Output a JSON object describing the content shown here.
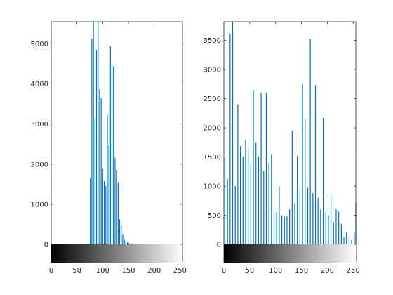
{
  "figure": {
    "background": "#ffffff",
    "bar_color": "#0072bd",
    "axis_color": "#262626"
  },
  "chart_data": [
    {
      "type": "bar",
      "title": "",
      "xlabel": "",
      "ylabel": "",
      "xlim": [
        0,
        255
      ],
      "ylim": [
        0,
        5550
      ],
      "x_ticks": [
        0,
        50,
        100,
        150,
        200,
        250
      ],
      "y_ticks": [
        0,
        1000,
        2000,
        3000,
        4000,
        5000
      ],
      "colorbar": "grayscale 0-255 below axis",
      "grid": false,
      "x": [
        76,
        79,
        82,
        85,
        88,
        91,
        94,
        97,
        100,
        103,
        106,
        109,
        112,
        115,
        118,
        121,
        124,
        127,
        130,
        133,
        136,
        139,
        142,
        145,
        148,
        151,
        154,
        157,
        160,
        163,
        166,
        169,
        172,
        175,
        178,
        181,
        184,
        187
      ],
      "values": [
        1650,
        5130,
        5550,
        3150,
        4850,
        5550,
        3870,
        3650,
        1900,
        1580,
        1450,
        3230,
        2480,
        4940,
        4510,
        4440,
        2160,
        1860,
        1550,
        620,
        460,
        260,
        140,
        80,
        50,
        30,
        20,
        15,
        10,
        8,
        6,
        5,
        4,
        3,
        3,
        2,
        2,
        2
      ]
    },
    {
      "type": "bar",
      "title": "",
      "xlabel": "",
      "ylabel": "",
      "xlim": [
        0,
        255
      ],
      "ylim": [
        0,
        3820
      ],
      "x_ticks": [
        0,
        50,
        100,
        150,
        200,
        250
      ],
      "y_ticks": [
        0,
        500,
        1000,
        1500,
        2000,
        2500,
        3000,
        3500
      ],
      "colorbar": "grayscale 0-255 below axis",
      "grid": false,
      "x": [
        2,
        7,
        12,
        17,
        22,
        27,
        32,
        37,
        42,
        47,
        52,
        57,
        62,
        67,
        72,
        77,
        82,
        87,
        92,
        97,
        102,
        107,
        112,
        117,
        122,
        127,
        132,
        137,
        142,
        147,
        152,
        157,
        162,
        167,
        172,
        177,
        182,
        187,
        192,
        197,
        202,
        207,
        212,
        217,
        222,
        227,
        232,
        237,
        242,
        247,
        252,
        255
      ],
      "values": [
        1500,
        1120,
        3620,
        3820,
        1000,
        2400,
        1680,
        1500,
        1800,
        1650,
        1400,
        2650,
        1750,
        1500,
        2600,
        1260,
        2600,
        1400,
        1550,
        550,
        550,
        1000,
        500,
        480,
        480,
        600,
        1950,
        700,
        1520,
        950,
        2760,
        2150,
        980,
        3520,
        880,
        2730,
        800,
        600,
        2170,
        560,
        500,
        860,
        380,
        600,
        560,
        350,
        120,
        210,
        110,
        80,
        200,
        720
      ]
    }
  ]
}
